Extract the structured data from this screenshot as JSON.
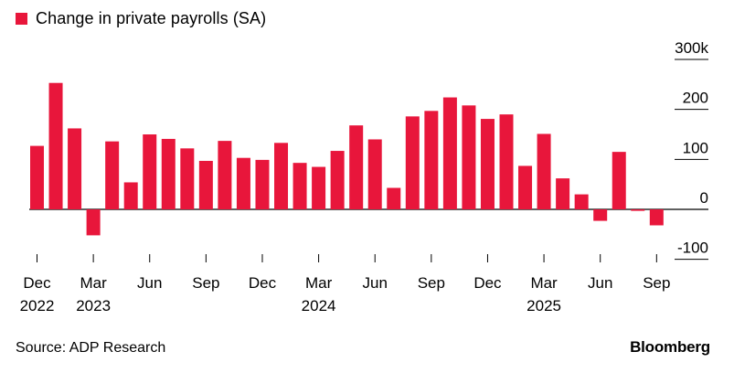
{
  "legend": {
    "label": "Change in private payrolls (SA)"
  },
  "footer": {
    "source": "Source: ADP Research",
    "brand": "Bloomberg"
  },
  "colors": {
    "bar": "#e8163b",
    "grid": "#000000",
    "axis": "#000000"
  },
  "chart_data": {
    "type": "bar",
    "title": "",
    "xlabel": "",
    "ylabel": "",
    "ylim": [
      -100,
      300
    ],
    "yticks": [
      {
        "value": 300,
        "label": "300k"
      },
      {
        "value": 200,
        "label": "200"
      },
      {
        "value": 100,
        "label": "100"
      },
      {
        "value": 0,
        "label": "0"
      },
      {
        "value": -100,
        "label": "-100"
      }
    ],
    "categories": [
      "Dec 2022",
      "Jan 2023",
      "Feb 2023",
      "Mar 2023",
      "Apr 2023",
      "May 2023",
      "Jun 2023",
      "Jul 2023",
      "Aug 2023",
      "Sep 2023",
      "Oct 2023",
      "Nov 2023",
      "Dec 2023",
      "Jan 2024",
      "Feb 2024",
      "Mar 2024",
      "Apr 2024",
      "May 2024",
      "Jun 2024",
      "Jul 2024",
      "Aug 2024",
      "Sep 2024",
      "Oct 2024",
      "Nov 2024",
      "Dec 2024",
      "Jan 2025",
      "Feb 2025",
      "Mar 2025",
      "Apr 2025",
      "May 2025",
      "Jun 2025",
      "Jul 2025",
      "Aug 2025",
      "Sep 2025"
    ],
    "series": [
      {
        "values": [
          127,
          253,
          162,
          -52,
          136,
          54,
          150,
          141,
          122,
          97,
          137,
          103,
          99,
          133,
          93,
          85,
          117,
          168,
          140,
          43,
          186,
          197,
          224,
          208,
          181,
          190,
          87,
          151,
          62,
          30,
          -23,
          115,
          -3,
          -32
        ]
      }
    ],
    "xtick_labels": [
      {
        "index": 0,
        "month": "Dec",
        "year": "2022"
      },
      {
        "index": 3,
        "month": "Mar",
        "year": "2023"
      },
      {
        "index": 6,
        "month": "Jun",
        "year": ""
      },
      {
        "index": 9,
        "month": "Sep",
        "year": ""
      },
      {
        "index": 12,
        "month": "Dec",
        "year": ""
      },
      {
        "index": 15,
        "month": "Mar",
        "year": "2024"
      },
      {
        "index": 18,
        "month": "Jun",
        "year": ""
      },
      {
        "index": 21,
        "month": "Sep",
        "year": ""
      },
      {
        "index": 24,
        "month": "Dec",
        "year": ""
      },
      {
        "index": 27,
        "month": "Mar",
        "year": "2025"
      },
      {
        "index": 30,
        "month": "Jun",
        "year": ""
      },
      {
        "index": 33,
        "month": "Sep",
        "year": ""
      }
    ],
    "grid": true,
    "legend_position": "top-left"
  }
}
